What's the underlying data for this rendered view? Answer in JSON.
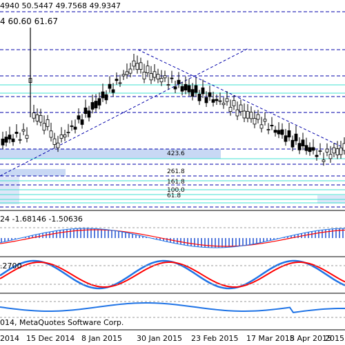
{
  "main_panel": {
    "ohlc_readout": "4940 50.5447 49.7568 49.9347",
    "values_readout": "4 60.60 61.67",
    "fib_levels": [
      "423.6",
      "261.8",
      "161.8",
      "100.0",
      "61.8"
    ]
  },
  "macd_panel": {
    "readout": "24 -1.68146 -1.50636"
  },
  "stoch_panel": {
    "readout": ".2700"
  },
  "rsi_panel": {
    "copyright": "014, MetaQuotes Software Corp."
  },
  "time_axis": {
    "labels": [
      "2014",
      "15 Dec 2014",
      "8 Jan 2015",
      "30 Jan 2015",
      "23 Feb 2015",
      "17 Mar 2015",
      "8 Apr 2015",
      "2015"
    ]
  },
  "colors": {
    "candle": "#000000",
    "fib_lines": "#0000aa",
    "channel_lines": "#40e0d0",
    "zone_fill": "#c8d8f4",
    "macd_hist": "#1e4fd0",
    "signal_red": "#ff0000",
    "signal_blue": "#1e73e6",
    "rsi_line": "#1e73e6"
  }
}
